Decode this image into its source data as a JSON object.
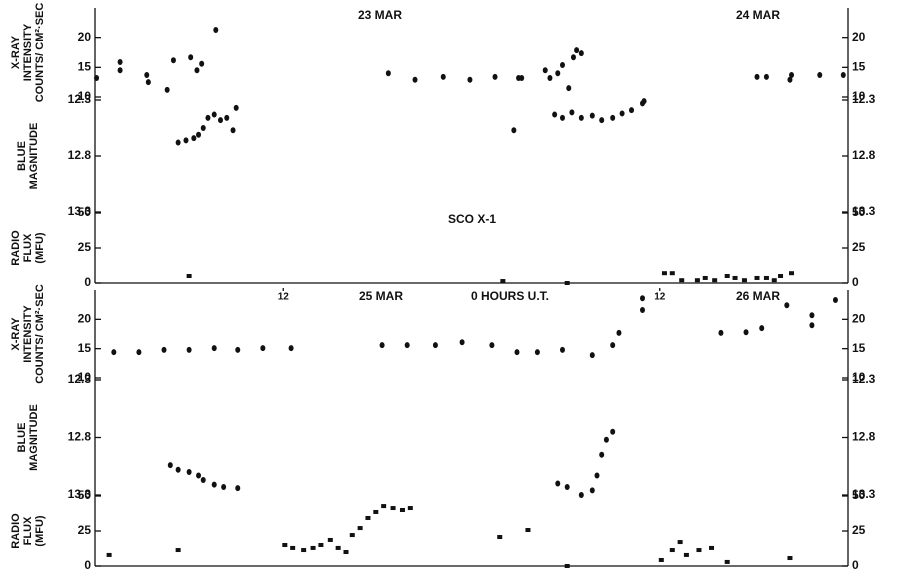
{
  "chart_data": [
    {
      "type": "scatter",
      "ylabel": [
        "X-RAY",
        "INTENSITY",
        "COUNTS/ CM²·SEC"
      ],
      "annotations": [
        "23 MAR",
        "24 MAR"
      ],
      "xlim": [
        -24,
        24
      ],
      "ylim": [
        10,
        25
      ],
      "yticks": [
        10,
        15,
        20
      ],
      "series": [
        {
          "color": "#111",
          "marker": "dot",
          "x": [
            -23.9,
            -22.4,
            -22.4,
            -20.7,
            -20.6,
            -19.4,
            -19.0,
            -17.9,
            -17.5,
            -17.2,
            -16.3,
            -5.3,
            -3.6,
            -1.8,
            -0.1,
            1.5,
            3.0,
            3.2,
            4.7,
            5.0,
            5.5,
            5.8,
            6.5,
            6.7,
            7.0,
            6.2,
            18.2,
            18.8,
            20.3,
            20.4,
            22.2,
            23.7
          ],
          "values": [
            13.2,
            15.9,
            14.5,
            13.7,
            12.5,
            11.2,
            16.2,
            16.7,
            14.5,
            15.6,
            21.3,
            14.0,
            12.9,
            13.4,
            12.9,
            13.4,
            13.2,
            13.2,
            14.5,
            13.2,
            14.0,
            15.4,
            16.7,
            17.9,
            17.4,
            11.5,
            13.4,
            13.4,
            12.9,
            13.7,
            13.7,
            13.7
          ]
        }
      ]
    },
    {
      "type": "scatter",
      "ylabel": [
        "BLUE",
        "MAGNITUDE"
      ],
      "xlim": [
        -24,
        24
      ],
      "ylim": [
        13.3,
        12.3
      ],
      "yticks": [
        12.3,
        12.8,
        13.3
      ],
      "series": [
        {
          "color": "#111",
          "marker": "dot",
          "x": [
            -18.7,
            -18.2,
            -17.7,
            -17.4,
            -17.1,
            -16.8,
            -16.4,
            -16.0,
            -15.6,
            -15.2,
            -15.0,
            2.7,
            5.3,
            5.8,
            6.4,
            7.0,
            7.7,
            8.3,
            9.0,
            9.6,
            10.2,
            10.9,
            11.0
          ],
          "values": [
            12.68,
            12.66,
            12.64,
            12.61,
            12.55,
            12.46,
            12.43,
            12.48,
            12.46,
            12.57,
            12.37,
            12.57,
            12.43,
            12.46,
            12.41,
            12.46,
            12.44,
            12.48,
            12.46,
            12.42,
            12.39,
            12.33,
            12.31
          ]
        }
      ]
    },
    {
      "type": "scatter",
      "ylabel": [
        "RADIO",
        "FLUX",
        "(MFU)"
      ],
      "annotations": [
        "SCO X-1"
      ],
      "xlim": [
        -24,
        24
      ],
      "ylim": [
        0,
        50
      ],
      "yticks": [
        0,
        25,
        50
      ],
      "series": [
        {
          "color": "#111",
          "marker": "square",
          "x": [
            -18.0,
            2.0,
            6.1,
            12.3,
            12.8,
            13.4,
            14.4,
            14.9,
            15.5,
            16.3,
            16.8,
            17.4,
            18.2,
            18.8,
            19.3,
            19.7,
            20.4
          ],
          "values": [
            5,
            1.4,
            0,
            7,
            7,
            2,
            2,
            3.6,
            2,
            5,
            3.6,
            2,
            3.6,
            3.6,
            2,
            5,
            7
          ]
        }
      ]
    },
    {
      "type": "scatter",
      "ylabel": [
        "X-RAY",
        "INTENSITY",
        "COUNTS/ CM²·SEC"
      ],
      "annotations": [
        "25 MAR",
        "0 HOURS U.T.",
        "26 MAR"
      ],
      "xlim": [
        -24,
        24
      ],
      "xticks": [
        {
          "value": -12,
          "label": "12"
        },
        {
          "value": 12,
          "label": "12"
        }
      ],
      "ylim": [
        10,
        25
      ],
      "yticks": [
        10,
        15,
        20
      ],
      "series": [
        {
          "color": "#111",
          "marker": "dot",
          "x": [
            -22.8,
            -21.2,
            -19.6,
            -18.0,
            -16.4,
            -14.9,
            -13.3,
            -11.5,
            -5.7,
            -4.1,
            -2.3,
            -0.6,
            1.3,
            2.9,
            4.2,
            5.8,
            7.7,
            9.0,
            9.4,
            10.9,
            10.9,
            15.9,
            17.5,
            18.5,
            20.1,
            21.7,
            21.7,
            23.2
          ],
          "values": [
            14.4,
            14.4,
            14.8,
            14.8,
            15.1,
            14.8,
            15.1,
            15.1,
            15.6,
            15.6,
            15.6,
            16.1,
            15.6,
            14.4,
            14.4,
            14.8,
            13.9,
            15.6,
            17.7,
            23.6,
            21.6,
            17.7,
            17.8,
            18.5,
            22.4,
            20.7,
            19.0,
            23.3
          ]
        }
      ]
    },
    {
      "type": "scatter",
      "ylabel": [
        "BLUE",
        "MAGNITUDE"
      ],
      "xlim": [
        -24,
        24
      ],
      "ylim": [
        13.3,
        12.3
      ],
      "yticks": [
        12.3,
        12.8,
        13.3
      ],
      "series": [
        {
          "color": "#111",
          "marker": "dot",
          "x": [
            -19.2,
            -18.7,
            -18.0,
            -17.4,
            -17.1,
            -16.4,
            -15.8,
            -14.9,
            5.5,
            6.1,
            7.0,
            7.7,
            8.0,
            8.3,
            8.6,
            9.0
          ],
          "values": [
            13.04,
            13.08,
            13.1,
            13.13,
            13.17,
            13.21,
            13.23,
            13.24,
            13.2,
            13.23,
            13.3,
            13.26,
            13.13,
            12.95,
            12.82,
            12.75
          ]
        }
      ]
    },
    {
      "type": "scatter",
      "ylabel": [
        "RADIO",
        "FLUX",
        "(MFU)"
      ],
      "xlim": [
        -24,
        24
      ],
      "ylim": [
        0,
        50
      ],
      "yticks": [
        0,
        25,
        50
      ],
      "series": [
        {
          "color": "#111",
          "marker": "square",
          "x": [
            -23.1,
            -18.7,
            -11.9,
            -11.4,
            -10.7,
            -10.1,
            -9.6,
            -9.0,
            -8.5,
            -8.0,
            -7.6,
            -7.1,
            -6.6,
            -6.1,
            -5.6,
            -5.0,
            -4.4,
            -3.9,
            1.8,
            3.6,
            6.1,
            12.1,
            12.8,
            13.3,
            13.7,
            14.5,
            15.3,
            16.3,
            20.3
          ],
          "values": [
            7.9,
            11.4,
            15,
            12.9,
            11.4,
            12.9,
            15,
            18.6,
            12.9,
            10,
            22.1,
            27.1,
            34.3,
            38.6,
            42.8,
            41.4,
            40,
            41.4,
            20.7,
            25.7,
            0,
            4.3,
            11.4,
            17.1,
            7.9,
            11.4,
            12.9,
            2.9,
            5.7
          ]
        }
      ]
    }
  ]
}
